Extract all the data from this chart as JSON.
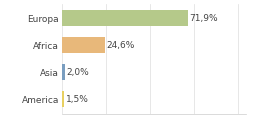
{
  "categories": [
    "Europa",
    "Africa",
    "Asia",
    "America"
  ],
  "values": [
    71.9,
    24.6,
    2.0,
    1.5
  ],
  "labels": [
    "71,9%",
    "24,6%",
    "2,0%",
    "1,5%"
  ],
  "bar_colors": [
    "#b5c98a",
    "#e8b87a",
    "#7a9ec0",
    "#e8d060"
  ],
  "background_color": "#ffffff",
  "xlim": [
    0,
    105
  ],
  "label_fontsize": 6.5,
  "tick_fontsize": 6.5,
  "bar_height": 0.6
}
